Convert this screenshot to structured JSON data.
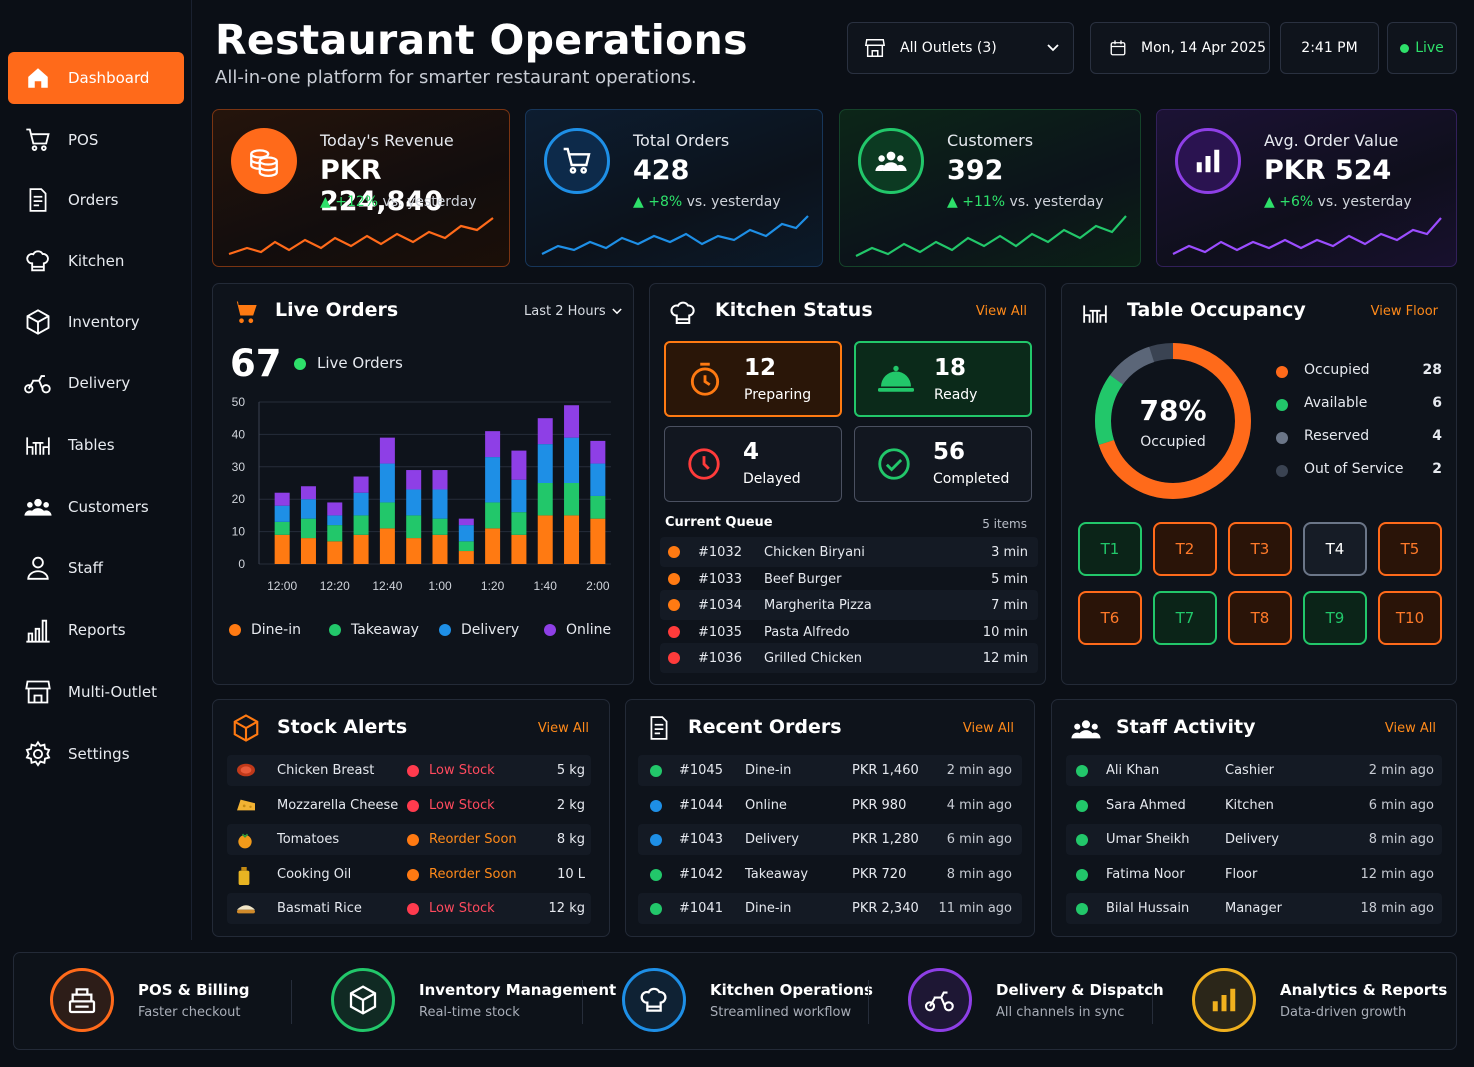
{
  "sidebar": {
    "items": [
      {
        "label": "Dashboard",
        "icon": "home-icon",
        "active": true
      },
      {
        "label": "POS",
        "icon": "cart-icon"
      },
      {
        "label": "Orders",
        "icon": "document-icon"
      },
      {
        "label": "Kitchen",
        "icon": "chef-hat-icon"
      },
      {
        "label": "Inventory",
        "icon": "box-icon"
      },
      {
        "label": "Delivery",
        "icon": "scooter-icon"
      },
      {
        "label": "Tables",
        "icon": "table-icon"
      },
      {
        "label": "Customers",
        "icon": "users-icon"
      },
      {
        "label": "Staff",
        "icon": "user-icon"
      },
      {
        "label": "Reports",
        "icon": "bar-chart-icon"
      },
      {
        "label": "Multi-Outlet",
        "icon": "store-icon"
      },
      {
        "label": "Settings",
        "icon": "gear-icon"
      }
    ]
  },
  "header": {
    "title": "Restaurant Operations",
    "subtitle": "All-in-one platform for smarter restaurant operations.",
    "outlet": "All Outlets (3)",
    "date": "Mon, 14 Apr 2025",
    "time": "2:41 PM",
    "live": "Live"
  },
  "kpis": [
    {
      "title": "Today's Revenue",
      "value": "PKR 224,840",
      "delta": "+12%",
      "suffix": "vs. yesterday",
      "color": "#ff6a1a"
    },
    {
      "title": "Total Orders",
      "value": "428",
      "delta": "+8%",
      "suffix": "vs. yesterday",
      "color": "#1e8fe6"
    },
    {
      "title": "Customers",
      "value": "392",
      "delta": "+11%",
      "suffix": "vs. yesterday",
      "color": "#22c76a"
    },
    {
      "title": "Avg. Order Value",
      "value": "PKR 524",
      "delta": "+6%",
      "suffix": "vs. yesterday",
      "color": "#8e3fe6"
    }
  ],
  "live_orders": {
    "title": "Live Orders",
    "range": "Last 2 Hours",
    "count": "67",
    "count_label": "Live Orders"
  },
  "chart_data": {
    "type": "bar",
    "stacked": true,
    "categories": [
      "12:00",
      "",
      "12:20",
      "",
      "12:40",
      "",
      "1:00",
      "",
      "1:20",
      "",
      "1:40",
      "",
      "2:00"
    ],
    "x_tick_labels": [
      "12:00",
      "12:20",
      "12:40",
      "1:00",
      "1:20",
      "1:40",
      "2:00"
    ],
    "ylim": [
      0,
      50
    ],
    "y_ticks": [
      0,
      10,
      20,
      30,
      40,
      50
    ],
    "grid": true,
    "legend": "bottom",
    "series": [
      {
        "name": "Dine-in",
        "color": "#ff7a12",
        "values": [
          9,
          8,
          7,
          9,
          11,
          8,
          9,
          4,
          11,
          9,
          15,
          15,
          14
        ]
      },
      {
        "name": "Takeaway",
        "color": "#22c76a",
        "values": [
          4,
          6,
          5,
          6,
          8,
          7,
          5,
          3,
          8,
          7,
          10,
          10,
          7
        ]
      },
      {
        "name": "Delivery",
        "color": "#1e8fe6",
        "values": [
          5,
          6,
          3,
          7,
          12,
          8,
          9,
          5,
          14,
          10,
          12,
          14,
          10
        ]
      },
      {
        "name": "Online",
        "color": "#8e3fe6",
        "values": [
          4,
          4,
          4,
          5,
          8,
          6,
          6,
          2,
          8,
          9,
          8,
          10,
          7
        ]
      }
    ]
  },
  "kitchen": {
    "title": "Kitchen Status",
    "view": "View All",
    "tiles": [
      {
        "n": "12",
        "l": "Preparing"
      },
      {
        "n": "18",
        "l": "Ready"
      },
      {
        "n": "4",
        "l": "Delayed"
      },
      {
        "n": "56",
        "l": "Completed"
      }
    ],
    "queue_title": "Current Queue",
    "queue_count": "5 items",
    "queue": [
      {
        "id": "#1032",
        "item": "Chicken Biryani",
        "time": "3 min",
        "color": "#ff7a12"
      },
      {
        "id": "#1033",
        "item": "Beef Burger",
        "time": "5 min",
        "color": "#ff7a12"
      },
      {
        "id": "#1034",
        "item": "Margherita Pizza",
        "time": "7 min",
        "color": "#ff7a12"
      },
      {
        "id": "#1035",
        "item": "Pasta Alfredo",
        "time": "10 min",
        "color": "#ff3b3b"
      },
      {
        "id": "#1036",
        "item": "Grilled Chicken",
        "time": "12 min",
        "color": "#ff3b3b"
      }
    ]
  },
  "occupancy": {
    "title": "Table Occupancy",
    "view": "View Floor",
    "percent": "78%",
    "percent_label": "Occupied",
    "legend": [
      {
        "label": "Occupied",
        "value": "28",
        "color": "#ff6a1a"
      },
      {
        "label": "Available",
        "value": "6",
        "color": "#22c76a"
      },
      {
        "label": "Reserved",
        "value": "4",
        "color": "#6b7688"
      },
      {
        "label": "Out of Service",
        "value": "2",
        "color": "#3a4352"
      }
    ],
    "tables": [
      {
        "label": "T1",
        "state": "available"
      },
      {
        "label": "T2",
        "state": "occupied"
      },
      {
        "label": "T3",
        "state": "occupied"
      },
      {
        "label": "T4",
        "state": "reserved"
      },
      {
        "label": "T5",
        "state": "occupied"
      },
      {
        "label": "T6",
        "state": "occupied"
      },
      {
        "label": "T7",
        "state": "available"
      },
      {
        "label": "T8",
        "state": "occupied"
      },
      {
        "label": "T9",
        "state": "available"
      },
      {
        "label": "T10",
        "state": "occupied"
      }
    ]
  },
  "stock": {
    "title": "Stock Alerts",
    "view": "View All",
    "items": [
      {
        "name": "Chicken Breast",
        "status": "Low Stock",
        "qty": "5 kg",
        "color": "#ff3b4e",
        "icon": "meat-icon"
      },
      {
        "name": "Mozzarella Cheese",
        "status": "Low Stock",
        "qty": "2 kg",
        "color": "#ff3b4e",
        "icon": "cheese-icon"
      },
      {
        "name": "Tomatoes",
        "status": "Reorder Soon",
        "qty": "8 kg",
        "color": "#ff7a12",
        "icon": "tomato-icon"
      },
      {
        "name": "Cooking Oil",
        "status": "Reorder Soon",
        "qty": "10 L",
        "color": "#ff7a12",
        "icon": "oil-icon"
      },
      {
        "name": "Basmati Rice",
        "status": "Low Stock",
        "qty": "12 kg",
        "color": "#ff3b4e",
        "icon": "rice-icon"
      }
    ]
  },
  "recent": {
    "title": "Recent Orders",
    "view": "View All",
    "items": [
      {
        "id": "#1045",
        "type": "Dine-in",
        "amount": "PKR 1,460",
        "ago": "2 min ago",
        "color": "#22c76a"
      },
      {
        "id": "#1044",
        "type": "Online",
        "amount": "PKR 980",
        "ago": "4 min ago",
        "color": "#1e8fe6"
      },
      {
        "id": "#1043",
        "type": "Delivery",
        "amount": "PKR 1,280",
        "ago": "6 min ago",
        "color": "#1e8fe6"
      },
      {
        "id": "#1042",
        "type": "Takeaway",
        "amount": "PKR 720",
        "ago": "8 min ago",
        "color": "#22c76a"
      },
      {
        "id": "#1041",
        "type": "Dine-in",
        "amount": "PKR 2,340",
        "ago": "11 min ago",
        "color": "#22c76a"
      }
    ]
  },
  "staff": {
    "title": "Staff Activity",
    "view": "View All",
    "items": [
      {
        "name": "Ali Khan",
        "role": "Cashier",
        "ago": "2 min ago"
      },
      {
        "name": "Sara Ahmed",
        "role": "Kitchen",
        "ago": "6 min ago"
      },
      {
        "name": "Umar Sheikh",
        "role": "Delivery",
        "ago": "8 min ago"
      },
      {
        "name": "Fatima Noor",
        "role": "Floor",
        "ago": "12 min ago"
      },
      {
        "name": "Bilal Hussain",
        "role": "Manager",
        "ago": "18 min ago"
      }
    ]
  },
  "features": [
    {
      "title": "POS & Billing",
      "sub": "Faster checkout",
      "color": "#ff6a1a"
    },
    {
      "title": "Inventory Management",
      "sub": "Real-time stock",
      "color": "#22c76a"
    },
    {
      "title": "Kitchen Operations",
      "sub": "Streamlined workflow",
      "color": "#1e8fe6"
    },
    {
      "title": "Delivery & Dispatch",
      "sub": "All channels in sync",
      "color": "#8e3fe6"
    },
    {
      "title": "Analytics & Reports",
      "sub": "Data-driven growth",
      "color": "#f0b01e"
    }
  ]
}
